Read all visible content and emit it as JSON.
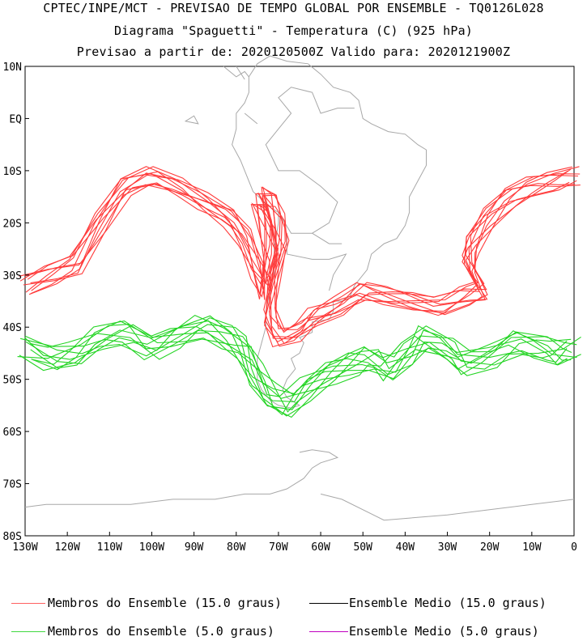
{
  "header": {
    "line1": "CPTEC/INPE/MCT - PREVISAO DE TEMPO GLOBAL POR ENSEMBLE - TQ0126L028",
    "line2": "Diagrama \"Spaguetti\" - Temperatura (C) (925 hPa)",
    "line3": "Previsao a partir de: 2020120500Z  Valido para: 2020121900Z"
  },
  "map": {
    "lat_labels": [
      "10N",
      "EQ",
      "10S",
      "20S",
      "30S",
      "40S",
      "50S",
      "60S",
      "70S",
      "80S"
    ],
    "lon_labels": [
      "130W",
      "120W",
      "110W",
      "100W",
      "90W",
      "80W",
      "70W",
      "60W",
      "50W",
      "40W",
      "30W",
      "20W",
      "10W",
      "0"
    ],
    "lat_values": [
      10,
      0,
      -10,
      -20,
      -30,
      -40,
      -50,
      -60,
      -70,
      -80
    ],
    "lon_values": [
      -130,
      -120,
      -110,
      -100,
      -90,
      -80,
      -70,
      -60,
      -50,
      -40,
      -30,
      -20,
      -10,
      0
    ],
    "extent": {
      "lon": [
        -130,
        0
      ],
      "lat": [
        -80,
        10
      ]
    },
    "colors": {
      "coast": "#a8a8a8",
      "member_15": "#ff3b3b",
      "member_5": "#22d422",
      "mean_15": "#000000",
      "mean_5": "#c000c0"
    }
  },
  "legend": [
    {
      "label": "Membros do Ensemble (15.0 graus)",
      "color": "#ff6060"
    },
    {
      "label": "Ensemble Medio (15.0 graus)",
      "color": "#000000"
    },
    {
      "label": "Membros do Ensemble (5.0 graus)",
      "color": "#40d840"
    },
    {
      "label": "Ensemble Medio (5.0 graus)",
      "color": "#c000c0"
    }
  ]
}
